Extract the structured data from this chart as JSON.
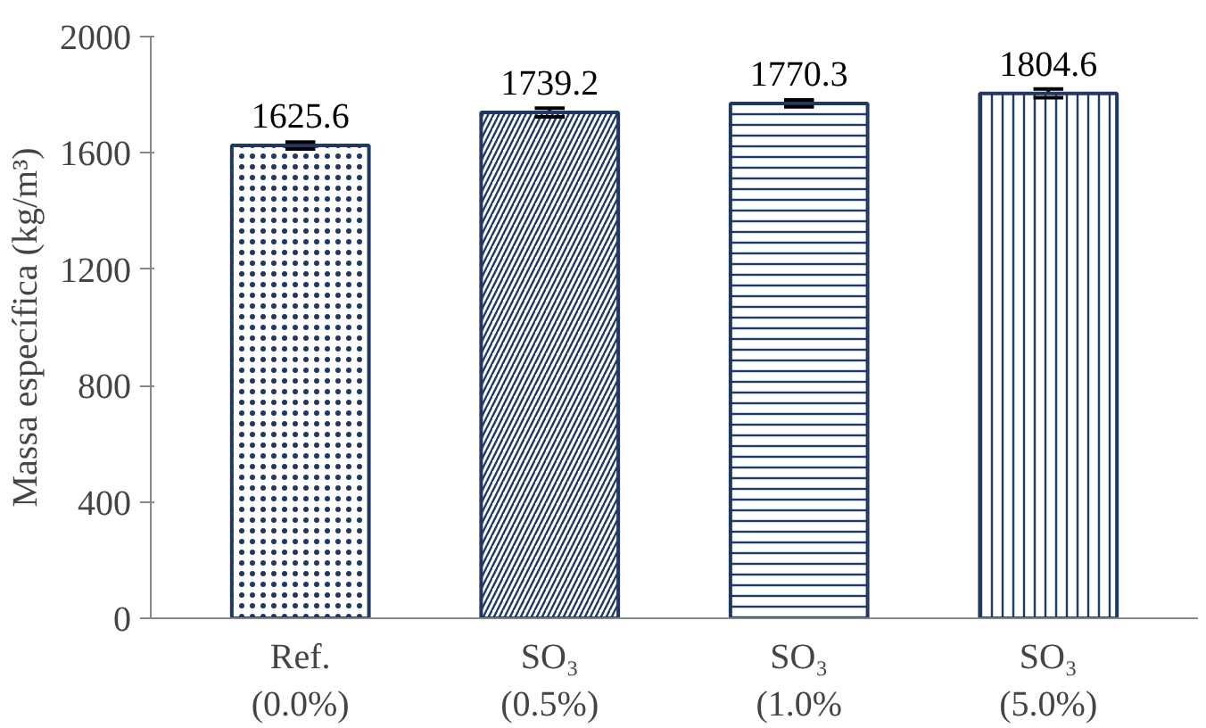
{
  "chart_data": {
    "type": "bar",
    "ylabel": "Massa específica (kg/m³)",
    "categories": [
      "Ref.\n(0.0%)",
      "SO₃\n(0.5%)",
      "SO₃\n(1.0%",
      "SO₃\n(5.0%)"
    ],
    "values": [
      1625.6,
      1739.2,
      1770.3,
      1804.6
    ],
    "errors": [
      12,
      15,
      12,
      15
    ],
    "color": "#203864",
    "ylim": [
      0,
      2000
    ],
    "yticks": [
      0,
      400,
      800,
      1200,
      1600,
      2000
    ],
    "data_labels": true,
    "grid": false
  }
}
